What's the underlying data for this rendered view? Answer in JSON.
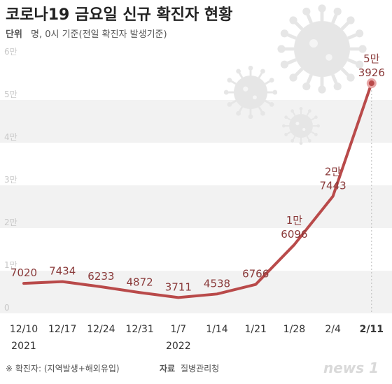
{
  "header": {
    "title": "코로나19 금요일 신규 확진자 현황",
    "unit_prefix": "단위",
    "unit_text": "명, 0시 기준(전일 확진자 발생기준)"
  },
  "footer": {
    "note": "※ 확진자: (지역발생+해외유입)",
    "source_label": "자료",
    "source": "질병관리청",
    "logo": "news 1"
  },
  "colors": {
    "line": "#b94a4a",
    "band": "#f2f2f2",
    "label": "#8a3a3a",
    "virus": "#e6e6e6"
  },
  "icons": [
    "virus-icon",
    "virus-icon",
    "virus-icon"
  ],
  "chart_data": {
    "type": "line",
    "title": "코로나19 금요일 신규 확진자 현황",
    "x": [
      "12/10",
      "12/17",
      "12/24",
      "12/31",
      "1/7",
      "1/14",
      "1/21",
      "1/28",
      "2/4",
      "2/11"
    ],
    "year_labels": [
      {
        "index": 0,
        "text": "2021"
      },
      {
        "index": 4,
        "text": "2022"
      }
    ],
    "values": [
      7020,
      7434,
      6233,
      4872,
      3711,
      4538,
      6766,
      16096,
      27443,
      53926
    ],
    "point_labels": [
      [
        "7020"
      ],
      [
        "7434"
      ],
      [
        "6233"
      ],
      [
        "4872"
      ],
      [
        "3711"
      ],
      [
        "4538"
      ],
      [
        "6766"
      ],
      [
        "1만",
        "6096"
      ],
      [
        "2만",
        "7443"
      ],
      [
        "5만",
        "3926"
      ]
    ],
    "yticks": [
      0,
      10000,
      20000,
      30000,
      40000,
      50000,
      60000
    ],
    "ytick_labels": [
      "0",
      "1만",
      "2만",
      "3만",
      "4만",
      "5만",
      "6만"
    ],
    "ylim": [
      0,
      60000
    ],
    "grid": true,
    "highlight_last": true
  }
}
